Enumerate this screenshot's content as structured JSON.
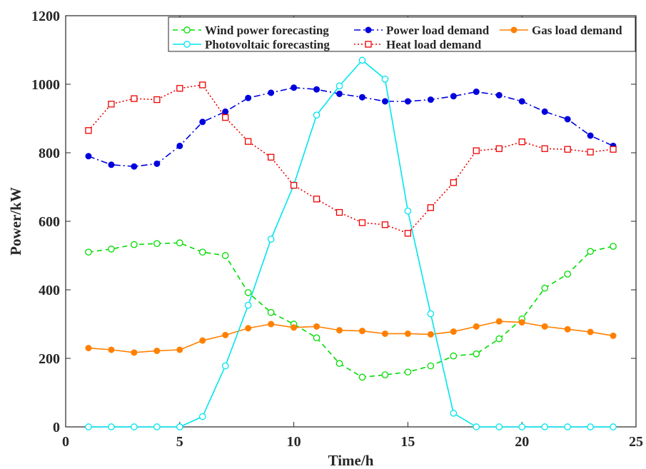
{
  "chart_data": {
    "type": "line",
    "xlabel": "Time/h",
    "ylabel": "Power/kW",
    "xlim": [
      0,
      25
    ],
    "ylim": [
      0,
      1200
    ],
    "xticks": [
      0,
      5,
      10,
      15,
      20,
      25
    ],
    "yticks": [
      0,
      200,
      400,
      600,
      800,
      1000,
      1200
    ],
    "grid": false,
    "legend_position": "top-right",
    "x": [
      1,
      2,
      3,
      4,
      5,
      6,
      7,
      8,
      9,
      10,
      11,
      12,
      13,
      14,
      15,
      16,
      17,
      18,
      19,
      20,
      21,
      22,
      23,
      24
    ],
    "series": [
      {
        "name": "Wind power forecasting",
        "color": "#00dd00",
        "line_style": "dashed",
        "marker": "open-circle",
        "values": [
          510,
          519,
          532,
          535,
          537,
          510,
          500,
          392,
          334,
          300,
          260,
          185,
          145,
          152,
          160,
          178,
          207,
          213,
          257,
          315,
          405,
          446,
          512,
          527
        ]
      },
      {
        "name": "Power load demand",
        "color": "#0000dd",
        "line_style": "dashdot",
        "marker": "filled-circle",
        "values": [
          790,
          765,
          760,
          768,
          820,
          890,
          920,
          960,
          975,
          990,
          985,
          972,
          962,
          950,
          950,
          955,
          965,
          978,
          968,
          950,
          920,
          898,
          850,
          820
        ]
      },
      {
        "name": "Gas load demand",
        "color": "#ff8000",
        "line_style": "solid",
        "marker": "filled-circle",
        "values": [
          230,
          225,
          217,
          222,
          225,
          252,
          268,
          288,
          300,
          290,
          293,
          282,
          280,
          272,
          272,
          270,
          278,
          293,
          308,
          305,
          293,
          285,
          277,
          266
        ]
      },
      {
        "name": "Photovoltaic forecasting",
        "color": "#00e5ee",
        "line_style": "solid",
        "marker": "open-circle",
        "values": [
          0,
          0,
          0,
          0,
          0,
          30,
          178,
          355,
          548,
          706,
          910,
          995,
          1070,
          1015,
          630,
          330,
          40,
          0,
          0,
          0,
          0,
          0,
          0,
          0
        ]
      },
      {
        "name": "Heat load demand",
        "color": "#ee0000",
        "line_style": "dotted",
        "marker": "open-square",
        "values": [
          865,
          942,
          958,
          955,
          988,
          998,
          903,
          833,
          787,
          705,
          665,
          626,
          596,
          590,
          565,
          640,
          713,
          806,
          812,
          832,
          812,
          810,
          802,
          810
        ]
      }
    ]
  }
}
